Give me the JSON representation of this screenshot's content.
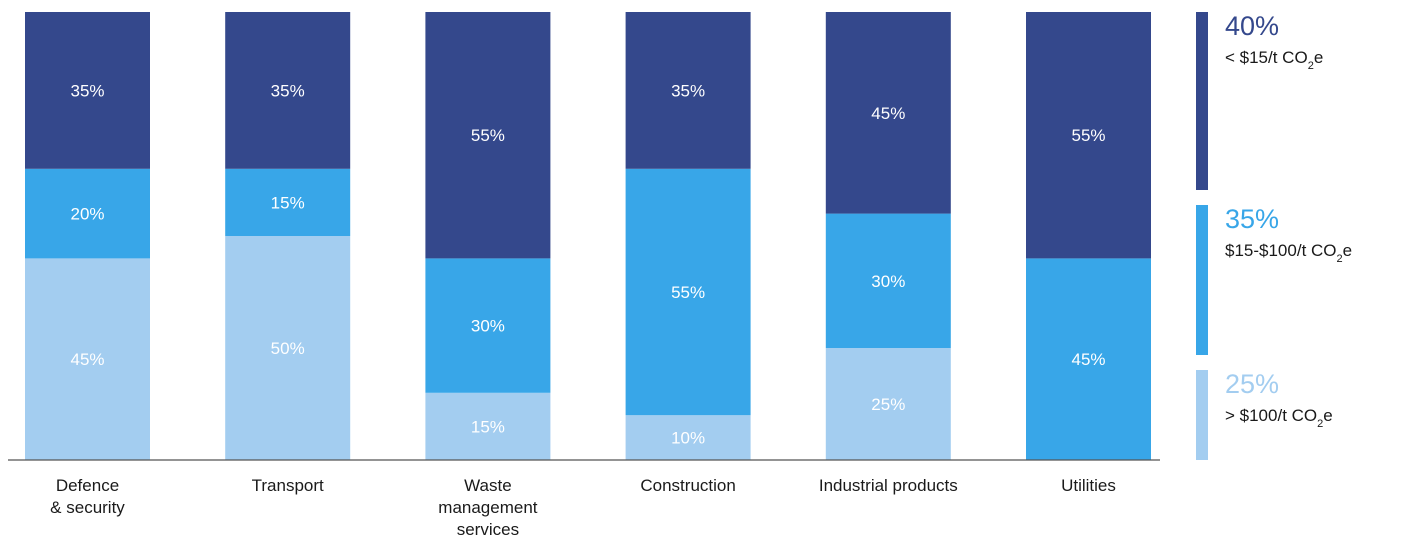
{
  "chart_data": {
    "type": "bar",
    "stacked": true,
    "categories": [
      "Defence\n& security",
      "Transport",
      "Waste\nmanagement\nservices",
      "Construction",
      "Industrial products",
      "Utilities"
    ],
    "series": [
      {
        "key": "high",
        "values": [
          45,
          50,
          15,
          10,
          25,
          0
        ],
        "color": "#a3cdf0",
        "label_color": "#ffffff"
      },
      {
        "key": "mid",
        "values": [
          20,
          15,
          30,
          55,
          30,
          45
        ],
        "color": "#38a6e8",
        "label_color": "#ffffff"
      },
      {
        "key": "low",
        "values": [
          35,
          35,
          55,
          35,
          45,
          55
        ],
        "color": "#34488c",
        "label_color": "#ffffff"
      }
    ],
    "value_suffix": "%",
    "ylim": [
      0,
      100
    ],
    "legend": {
      "position": "right",
      "items": [
        {
          "series": "low",
          "pct": "40%",
          "label_main": "< $15/t CO",
          "label_sub": "2",
          "label_tail": "e",
          "color": "#34488c",
          "label_color": "#1a1a1a"
        },
        {
          "series": "mid",
          "pct": "35%",
          "label_main": "$15-$100/t CO",
          "label_sub": "2",
          "label_tail": "e",
          "color": "#38a6e8",
          "label_color": "#1a1a1a"
        },
        {
          "series": "high",
          "pct": "25%",
          "label_main": "> $100/t CO",
          "label_sub": "2",
          "label_tail": "e",
          "color": "#a3cdf0",
          "label_color": "#1a1a1a"
        }
      ]
    },
    "axis_color": "#555555",
    "tick_label_color": "#1a1a1a"
  }
}
